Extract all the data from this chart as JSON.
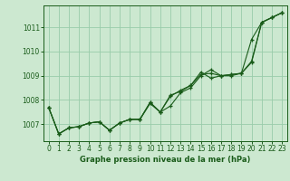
{
  "background_color": "#cce8d0",
  "grid_color": "#99ccaa",
  "line_color": "#1a5c1a",
  "xlabel": "Graphe pression niveau de la mer (hPa)",
  "ylim": [
    1006.3,
    1011.9
  ],
  "xlim": [
    -0.5,
    23.5
  ],
  "yticks": [
    1007,
    1008,
    1009,
    1010,
    1011
  ],
  "xticks": [
    0,
    1,
    2,
    3,
    4,
    5,
    6,
    7,
    8,
    9,
    10,
    11,
    12,
    13,
    14,
    15,
    16,
    17,
    18,
    19,
    20,
    21,
    22,
    23
  ],
  "series": [
    [
      1007.7,
      1006.6,
      1006.85,
      1006.9,
      1007.05,
      1007.1,
      1006.75,
      1007.05,
      1007.2,
      1007.2,
      1007.85,
      1007.5,
      1007.75,
      1008.3,
      1008.5,
      1009.0,
      1009.25,
      1009.0,
      1009.0,
      1009.1,
      1009.55,
      1011.2,
      1011.4,
      1011.6
    ],
    [
      1007.7,
      1006.6,
      1006.85,
      1006.9,
      1007.05,
      1007.1,
      1006.75,
      1007.05,
      1007.2,
      1007.2,
      1007.9,
      1007.5,
      1008.15,
      1008.4,
      1008.6,
      1009.15,
      1008.9,
      1009.0,
      1009.05,
      1009.1,
      1010.5,
      1011.2,
      1011.4,
      1011.6
    ],
    [
      1007.7,
      1006.6,
      1006.85,
      1006.9,
      1007.05,
      1007.1,
      1006.75,
      1007.05,
      1007.2,
      1007.2,
      1007.9,
      1007.5,
      1008.2,
      1008.35,
      1008.6,
      1009.05,
      1009.1,
      1009.0,
      1009.05,
      1009.1,
      1009.6,
      1011.2,
      1011.4,
      1011.6
    ]
  ]
}
